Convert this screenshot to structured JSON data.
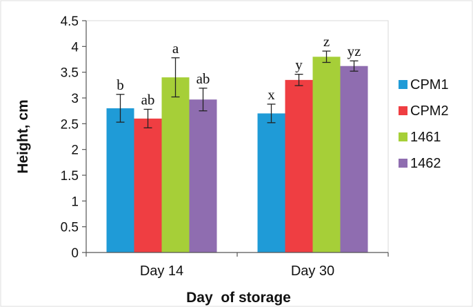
{
  "chart_data": {
    "type": "bar",
    "title": "",
    "xlabel": "Day  of storage",
    "ylabel": "Height, cm",
    "ylim": [
      0,
      4.5
    ],
    "yticks": [
      0,
      0.5,
      1,
      1.5,
      2,
      2.5,
      3,
      3.5,
      4,
      4.5
    ],
    "ytick_labels": [
      "0",
      "0.5",
      "1",
      "1.5",
      "2",
      "2.5",
      "3",
      "3.5",
      "4",
      "4.5"
    ],
    "grid": false,
    "legend_position": "right",
    "categories": [
      "Day 14",
      "Day 30"
    ],
    "series": [
      {
        "name": "CPM1",
        "color": "#1f9bd7",
        "values": [
          2.8,
          2.7
        ],
        "errors": [
          0.27,
          0.18
        ],
        "labels": [
          "b",
          "x"
        ]
      },
      {
        "name": "CPM2",
        "color": "#ef3e42",
        "values": [
          2.6,
          3.35
        ],
        "errors": [
          0.18,
          0.11
        ],
        "labels": [
          "ab",
          "y"
        ]
      },
      {
        "name": "1461",
        "color": "#a6cf38",
        "values": [
          3.4,
          3.8
        ],
        "errors": [
          0.38,
          0.11
        ],
        "labels": [
          "a",
          "z"
        ]
      },
      {
        "name": "1462",
        "color": "#8f6db0",
        "values": [
          2.97,
          3.62
        ],
        "errors": [
          0.22,
          0.1
        ],
        "labels": [
          "ab",
          "yz"
        ]
      }
    ]
  }
}
